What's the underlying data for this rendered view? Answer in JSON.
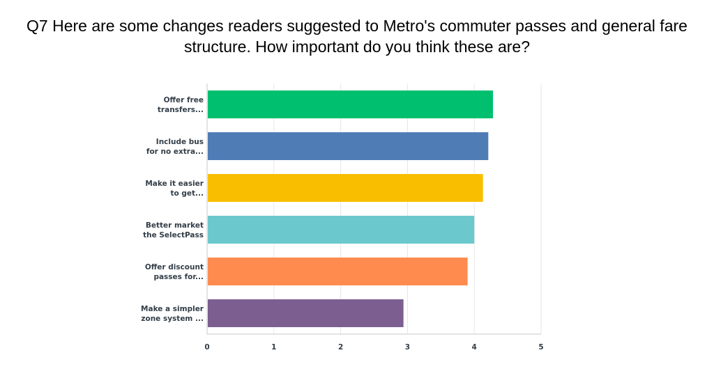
{
  "title_lines": [
    "Q7 Here are some changes readers suggested to Metro's commuter passes and general fare",
    "structure. How important do you think these are?"
  ],
  "chart_data": {
    "type": "bar",
    "orientation": "horizontal",
    "title": "Q7 Here are some changes readers suggested to Metro's commuter passes and general fare structure. How important do you think these are?",
    "categories": [
      [
        "Offer free",
        "transfers..."
      ],
      [
        "Include bus",
        "for no extra..."
      ],
      [
        "Make it easier",
        "to get..."
      ],
      [
        "Better market",
        "the SelectPass"
      ],
      [
        "Offer discount",
        "passes for..."
      ],
      [
        "Make a simpler",
        "zone system ..."
      ]
    ],
    "values": [
      4.28,
      4.21,
      4.13,
      4.0,
      3.9,
      2.94
    ],
    "colors": [
      "#00bf6f",
      "#507cb6",
      "#f9be00",
      "#6bc8cd",
      "#ff8b4f",
      "#7d5e90"
    ],
    "xlim": [
      0,
      5
    ],
    "xticks": [
      "0",
      "1",
      "2",
      "3",
      "4",
      "5"
    ],
    "grid": true,
    "legend": "none"
  }
}
